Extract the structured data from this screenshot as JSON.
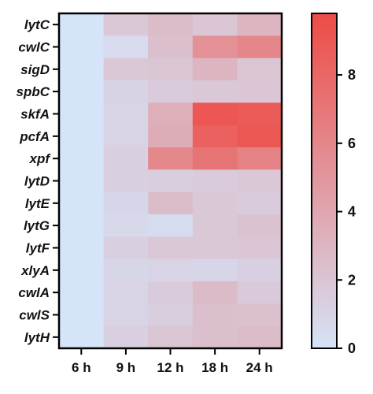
{
  "chart_data": {
    "type": "heatmap",
    "title": "",
    "xlabel": "",
    "ylabel": "",
    "columns": [
      "6 h",
      "9 h",
      "12 h",
      "18 h",
      "24 h"
    ],
    "rows": [
      "lytC",
      "cwlC",
      "sigD",
      "spbC",
      "skfA",
      "pcfA",
      "xpf",
      "lytD",
      "lytE",
      "lytG",
      "lytF",
      "xlyA",
      "cwlA",
      "cwlS",
      "lytH"
    ],
    "values": [
      [
        0.0,
        1.8,
        2.5,
        1.9,
        3.0
      ],
      [
        0.0,
        0.6,
        2.4,
        5.3,
        6.0
      ],
      [
        0.0,
        1.8,
        2.0,
        3.0,
        2.0
      ],
      [
        0.0,
        1.1,
        1.6,
        1.8,
        1.9
      ],
      [
        0.0,
        1.0,
        3.4,
        9.0,
        8.7
      ],
      [
        0.0,
        1.0,
        3.6,
        8.4,
        8.9
      ],
      [
        0.0,
        1.3,
        5.9,
        7.2,
        6.3
      ],
      [
        0.0,
        1.3,
        1.4,
        1.6,
        1.8
      ],
      [
        0.0,
        0.9,
        2.5,
        1.8,
        1.6
      ],
      [
        0.0,
        0.7,
        0.5,
        1.8,
        2.2
      ],
      [
        0.0,
        1.3,
        1.8,
        1.8,
        1.9
      ],
      [
        0.0,
        0.9,
        1.0,
        0.9,
        1.3
      ],
      [
        0.0,
        1.0,
        1.6,
        2.6,
        1.7
      ],
      [
        0.0,
        1.0,
        1.4,
        2.4,
        2.3
      ],
      [
        0.0,
        1.3,
        2.0,
        2.4,
        2.5
      ]
    ],
    "colorbar": {
      "min": 0,
      "max": 9.8,
      "ticks": [
        "0",
        "2",
        "4",
        "6",
        "8"
      ],
      "tick_values": [
        0,
        2,
        4,
        6,
        8
      ],
      "color_low": "#d5e4f8",
      "color_high": "#ee4b45"
    },
    "legend_position": "right"
  }
}
